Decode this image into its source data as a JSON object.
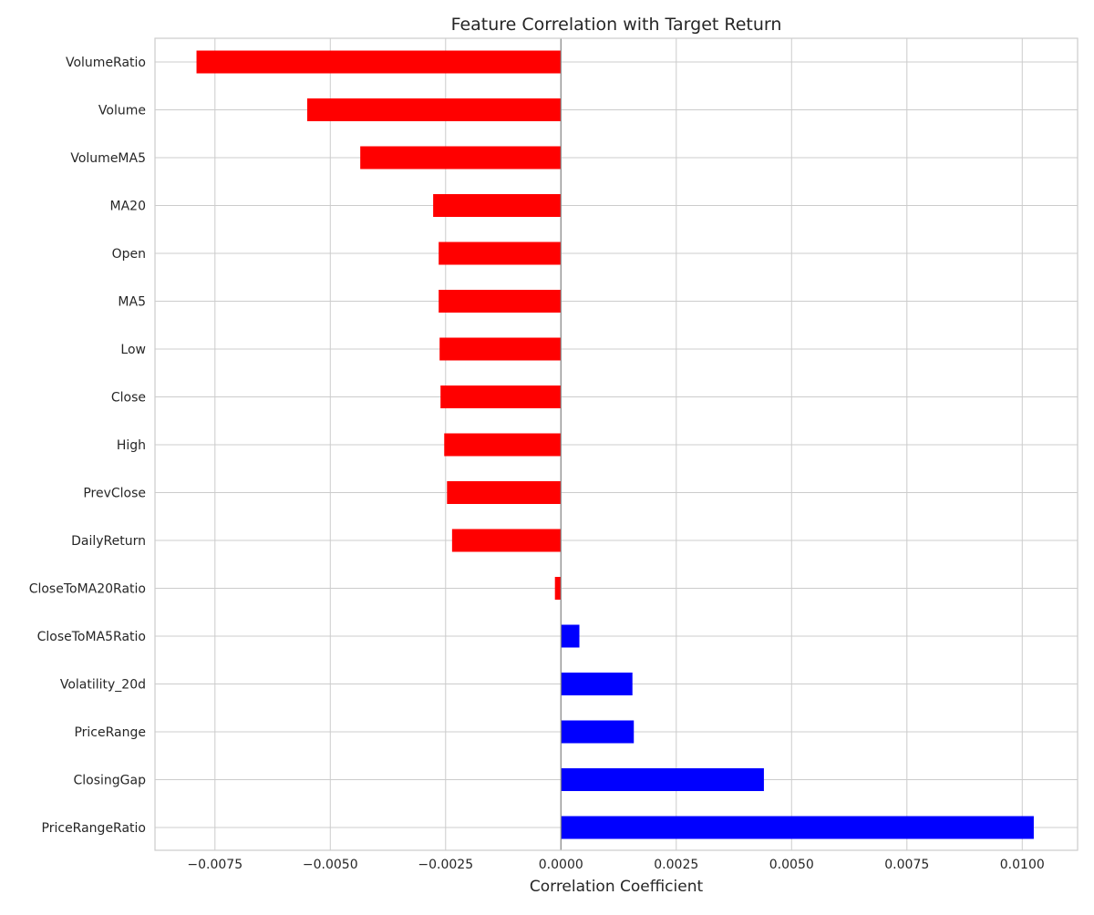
{
  "chart_data": {
    "type": "bar",
    "orientation": "horizontal",
    "title": "Feature Correlation with Target Return",
    "xlabel": "Correlation Coefficient",
    "ylabel": "",
    "grid": true,
    "xlim": [
      -0.0088,
      0.0112
    ],
    "categories": [
      "VolumeRatio",
      "Volume",
      "VolumeMA5",
      "MA20",
      "Open",
      "MA5",
      "Low",
      "Close",
      "High",
      "PrevClose",
      "DailyReturn",
      "CloseToMA20Ratio",
      "CloseToMA5Ratio",
      "Volatility_20d",
      "PriceRange",
      "ClosingGap",
      "PriceRangeRatio"
    ],
    "values": [
      -0.0079,
      -0.0055,
      -0.00435,
      -0.00277,
      -0.00265,
      -0.00265,
      -0.00263,
      -0.00261,
      -0.00253,
      -0.00247,
      -0.00236,
      -0.00013,
      0.0004,
      0.00155,
      0.00158,
      0.0044,
      0.01025
    ],
    "xticks": [
      "−0.0075",
      "−0.0050",
      "−0.0025",
      "0.0000",
      "0.0025",
      "0.0050",
      "0.0075",
      "0.0100"
    ],
    "xtick_values": [
      -0.0075,
      -0.005,
      -0.0025,
      0,
      0.0025,
      0.005,
      0.0075,
      0.01
    ],
    "colors": {
      "negative": "#ff0000",
      "positive": "#0000ff",
      "grid": "#cccccc",
      "zero_line": "#888888"
    }
  }
}
